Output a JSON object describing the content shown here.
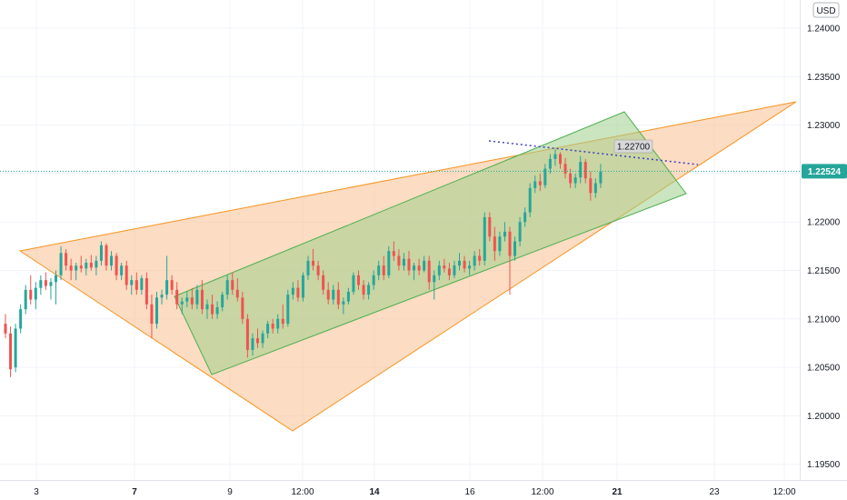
{
  "chart_data": {
    "type": "candlestick",
    "currency": "USD",
    "y_axis": {
      "ticks": [
        "1.24000",
        "1.23500",
        "1.23000",
        "1.22500",
        "1.22000",
        "1.21500",
        "1.21000",
        "1.20500",
        "1.20000",
        "1.19500"
      ],
      "range": [
        1.1925,
        1.2435
      ]
    },
    "x_axis": {
      "ticks": [
        {
          "label": "3",
          "bold": false
        },
        {
          "label": "7",
          "bold": true
        },
        {
          "label": "9",
          "bold": false
        },
        {
          "label": "12:00",
          "bold": false
        },
        {
          "label": "14",
          "bold": true
        },
        {
          "label": "16",
          "bold": false
        },
        {
          "label": "12:00",
          "bold": false
        },
        {
          "label": "21",
          "bold": true
        },
        {
          "label": "23",
          "bold": false
        },
        {
          "label": "12:00",
          "bold": false
        }
      ]
    },
    "current_price": "1.22524",
    "current_price_value": 1.22524,
    "annotation_label": "1.22700",
    "annotation_value": 1.227,
    "colors": {
      "up": "#26a69a",
      "down": "#ef5350",
      "triangle_fill": "#f9c08f",
      "triangle_stroke": "#f7931e",
      "channel_fill": "#9fd08a",
      "channel_stroke": "#4caf50",
      "dotted_line": "#3f3fbf",
      "price_badge": "#26a69a"
    },
    "candles": [
      [
        1.2095,
        1.2105,
        1.208,
        1.2085
      ],
      [
        1.2085,
        1.2092,
        1.204,
        1.2048
      ],
      [
        1.205,
        1.2095,
        1.2045,
        1.209
      ],
      [
        1.209,
        1.2115,
        1.2085,
        1.211
      ],
      [
        1.211,
        1.2135,
        1.2105,
        1.213
      ],
      [
        1.213,
        1.2145,
        1.2115,
        1.212
      ],
      [
        1.212,
        1.2138,
        1.211,
        1.2132
      ],
      [
        1.2132,
        1.2145,
        1.2125,
        1.214
      ],
      [
        1.214,
        1.2148,
        1.213,
        1.2134
      ],
      [
        1.2134,
        1.2142,
        1.212,
        1.2138
      ],
      [
        1.2138,
        1.215,
        1.2115,
        1.2145
      ],
      [
        1.2145,
        1.2175,
        1.214,
        1.2168
      ],
      [
        1.2168,
        1.2172,
        1.215,
        1.2155
      ],
      [
        1.2155,
        1.2162,
        1.214,
        1.215
      ],
      [
        1.215,
        1.2158,
        1.214,
        1.2155
      ],
      [
        1.2155,
        1.2165,
        1.2148,
        1.2152
      ],
      [
        1.2152,
        1.2162,
        1.2145,
        1.2158
      ],
      [
        1.2158,
        1.2166,
        1.215,
        1.2153
      ],
      [
        1.2153,
        1.2165,
        1.2145,
        1.216
      ],
      [
        1.216,
        1.218,
        1.2155,
        1.2176
      ],
      [
        1.2176,
        1.2178,
        1.215,
        1.2155
      ],
      [
        1.2155,
        1.217,
        1.215,
        1.2165
      ],
      [
        1.2165,
        1.2168,
        1.214,
        1.2145
      ],
      [
        1.2145,
        1.2158,
        1.214,
        1.2155
      ],
      [
        1.2155,
        1.216,
        1.213,
        1.2135
      ],
      [
        1.2135,
        1.2145,
        1.2125,
        1.214
      ],
      [
        1.214,
        1.2148,
        1.2125,
        1.213
      ],
      [
        1.213,
        1.2145,
        1.2125,
        1.2142
      ],
      [
        1.2142,
        1.2148,
        1.211,
        1.2115
      ],
      [
        1.2115,
        1.2125,
        1.208,
        1.2095
      ],
      [
        1.2095,
        1.2128,
        1.209,
        1.2122
      ],
      [
        1.2122,
        1.213,
        1.2115,
        1.2125
      ],
      [
        1.2125,
        1.2165,
        1.212,
        1.214
      ],
      [
        1.214,
        1.2145,
        1.2125,
        1.213
      ],
      [
        1.213,
        1.2138,
        1.211,
        1.2115
      ],
      [
        1.2115,
        1.2122,
        1.2105,
        1.2118
      ],
      [
        1.2118,
        1.2128,
        1.2112,
        1.2122
      ],
      [
        1.2122,
        1.2132,
        1.211,
        1.2115
      ],
      [
        1.2115,
        1.2135,
        1.211,
        1.213
      ],
      [
        1.213,
        1.214,
        1.2105,
        1.211
      ],
      [
        1.211,
        1.212,
        1.21,
        1.2115
      ],
      [
        1.2115,
        1.2125,
        1.21,
        1.2105
      ],
      [
        1.2105,
        1.2118,
        1.21,
        1.2112
      ],
      [
        1.2112,
        1.2128,
        1.2108,
        1.2125
      ],
      [
        1.2125,
        1.2145,
        1.212,
        1.214
      ],
      [
        1.214,
        1.2148,
        1.2125,
        1.213
      ],
      [
        1.213,
        1.2142,
        1.2118,
        1.2122
      ],
      [
        1.2122,
        1.2128,
        1.2095,
        1.21
      ],
      [
        1.21,
        1.2105,
        1.206,
        1.2068
      ],
      [
        1.2068,
        1.2085,
        1.2062,
        1.208
      ],
      [
        1.208,
        1.209,
        1.207,
        1.2075
      ],
      [
        1.2075,
        1.2088,
        1.207,
        1.2085
      ],
      [
        1.2085,
        1.2098,
        1.208,
        1.2095
      ],
      [
        1.2095,
        1.21,
        1.2085,
        1.209
      ],
      [
        1.209,
        1.2105,
        1.2085,
        1.21
      ],
      [
        1.21,
        1.2115,
        1.209,
        1.2095
      ],
      [
        1.2095,
        1.213,
        1.2092,
        1.2125
      ],
      [
        1.2125,
        1.2138,
        1.212,
        1.2132
      ],
      [
        1.2132,
        1.214,
        1.2118,
        1.2122
      ],
      [
        1.2122,
        1.2148,
        1.2118,
        1.2145
      ],
      [
        1.2145,
        1.2165,
        1.214,
        1.216
      ],
      [
        1.216,
        1.2172,
        1.215,
        1.2155
      ],
      [
        1.2155,
        1.216,
        1.214,
        1.2145
      ],
      [
        1.2145,
        1.215,
        1.2125,
        1.213
      ],
      [
        1.213,
        1.2138,
        1.2115,
        1.212
      ],
      [
        1.212,
        1.2135,
        1.2115,
        1.213
      ],
      [
        1.213,
        1.2138,
        1.211,
        1.2115
      ],
      [
        1.2115,
        1.2122,
        1.2105,
        1.2118
      ],
      [
        1.2118,
        1.2132,
        1.2115,
        1.2128
      ],
      [
        1.2128,
        1.2148,
        1.2125,
        1.2145
      ],
      [
        1.2145,
        1.215,
        1.213,
        1.2135
      ],
      [
        1.2135,
        1.214,
        1.212,
        1.2125
      ],
      [
        1.2125,
        1.2138,
        1.212,
        1.2135
      ],
      [
        1.2135,
        1.215,
        1.213,
        1.2145
      ],
      [
        1.2145,
        1.216,
        1.214,
        1.2155
      ],
      [
        1.2155,
        1.2165,
        1.214,
        1.2145
      ],
      [
        1.2145,
        1.2175,
        1.2142,
        1.217
      ],
      [
        1.217,
        1.218,
        1.216,
        1.2165
      ],
      [
        1.2165,
        1.2172,
        1.215,
        1.2155
      ],
      [
        1.2155,
        1.2168,
        1.215,
        1.2162
      ],
      [
        1.2162,
        1.217,
        1.2145,
        1.215
      ],
      [
        1.215,
        1.2158,
        1.214,
        1.2155
      ],
      [
        1.2155,
        1.2162,
        1.2145,
        1.215
      ],
      [
        1.215,
        1.2165,
        1.2148,
        1.216
      ],
      [
        1.216,
        1.2165,
        1.213,
        1.2138
      ],
      [
        1.2138,
        1.215,
        1.212,
        1.2145
      ],
      [
        1.2145,
        1.216,
        1.214,
        1.2155
      ],
      [
        1.2155,
        1.2162,
        1.2148,
        1.2152
      ],
      [
        1.2152,
        1.2158,
        1.214,
        1.2145
      ],
      [
        1.2145,
        1.216,
        1.2142,
        1.2155
      ],
      [
        1.2155,
        1.2168,
        1.215,
        1.216
      ],
      [
        1.216,
        1.2165,
        1.2148,
        1.2152
      ],
      [
        1.2152,
        1.216,
        1.2145,
        1.2155
      ],
      [
        1.2155,
        1.217,
        1.215,
        1.2165
      ],
      [
        1.2165,
        1.2172,
        1.2155,
        1.216
      ],
      [
        1.216,
        1.221,
        1.2155,
        1.2205
      ],
      [
        1.2205,
        1.221,
        1.218,
        1.2185
      ],
      [
        1.2185,
        1.2195,
        1.216,
        1.217
      ],
      [
        1.217,
        1.219,
        1.2165,
        1.2185
      ],
      [
        1.2185,
        1.22,
        1.218,
        1.219
      ],
      [
        1.219,
        1.2195,
        1.2125,
        1.2165
      ],
      [
        1.2165,
        1.2185,
        1.216,
        1.218
      ],
      [
        1.218,
        1.2205,
        1.2175,
        1.22
      ],
      [
        1.22,
        1.2215,
        1.2195,
        1.221
      ],
      [
        1.221,
        1.224,
        1.2205,
        1.2235
      ],
      [
        1.2235,
        1.2248,
        1.223,
        1.2242
      ],
      [
        1.2242,
        1.225,
        1.2232,
        1.2238
      ],
      [
        1.2238,
        1.226,
        1.2235,
        1.2255
      ],
      [
        1.2255,
        1.227,
        1.225,
        1.2265
      ],
      [
        1.2265,
        1.2275,
        1.2258,
        1.227
      ],
      [
        1.227,
        1.2272,
        1.2255,
        1.226
      ],
      [
        1.226,
        1.2266,
        1.2245,
        1.225
      ],
      [
        1.225,
        1.2255,
        1.2235,
        1.224
      ],
      [
        1.224,
        1.225,
        1.2235,
        1.2246
      ],
      [
        1.2246,
        1.2268,
        1.224,
        1.2262
      ],
      [
        1.2262,
        1.2265,
        1.224,
        1.2245
      ],
      [
        1.2245,
        1.2252,
        1.2222,
        1.223
      ],
      [
        1.223,
        1.2245,
        1.2225,
        1.224
      ],
      [
        1.224,
        1.226,
        1.2235,
        1.2252
      ]
    ]
  }
}
